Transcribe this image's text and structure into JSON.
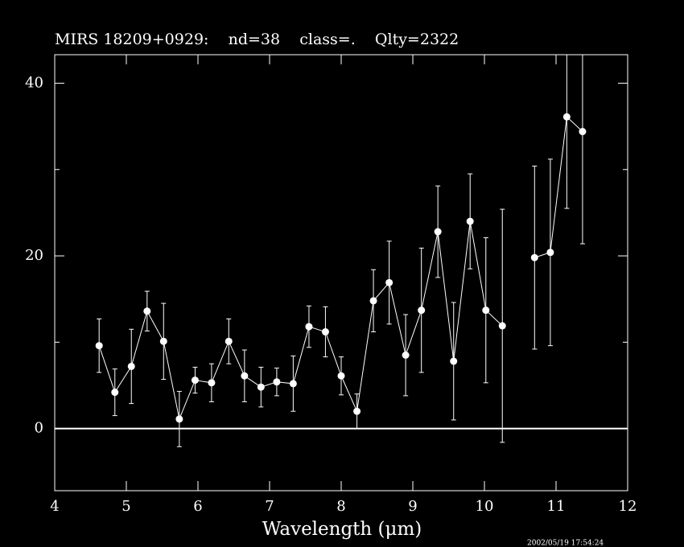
{
  "chart_data": {
    "type": "errorbar-line",
    "title": "MIRS 18209+0929:    nd=38    class=.    Qlty=2322",
    "x_label": "Wavelength (μm)",
    "timestamp": "2002/05/19 17:54:24",
    "xlim": [
      4,
      12
    ],
    "xticks": [
      4,
      5,
      6,
      7,
      8,
      9,
      10,
      11,
      12
    ],
    "ylim": [
      -7.2,
      43.3
    ],
    "yticks": [
      0,
      20,
      40
    ],
    "yminor_ticks": [
      10,
      30
    ],
    "hline": 0,
    "color": "#ffffff",
    "series": [
      {
        "x": [
          4.62,
          4.84,
          5.07,
          5.29,
          5.52,
          5.74,
          5.96,
          6.19,
          6.43,
          6.65,
          6.88,
          7.1,
          7.33,
          7.55,
          7.78,
          8.0,
          8.22,
          8.45,
          8.67,
          8.9,
          9.12,
          9.35,
          9.57,
          9.8,
          10.02,
          10.25,
          10.47,
          10.7,
          10.92,
          11.15,
          11.37
        ],
        "values": [
          9.6,
          4.2,
          7.2,
          13.6,
          10.1,
          1.1,
          5.6,
          5.3,
          10.1,
          6.1,
          4.8,
          5.4,
          5.2,
          11.8,
          11.2,
          6.1,
          2.0,
          14.8,
          16.9,
          8.5,
          13.7,
          22.8,
          7.8,
          24.0,
          13.7,
          11.9,
          null,
          19.8,
          20.4,
          36.1,
          34.4
        ],
        "errors": [
          3.1,
          2.7,
          4.3,
          2.3,
          4.4,
          3.2,
          1.5,
          2.2,
          2.6,
          3.0,
          2.3,
          1.6,
          3.2,
          2.4,
          2.9,
          2.2,
          2.0,
          3.6,
          4.8,
          4.7,
          7.2,
          5.3,
          6.8,
          5.5,
          8.4,
          13.5,
          null,
          10.6,
          10.8,
          10.6,
          13.0
        ]
      }
    ]
  }
}
